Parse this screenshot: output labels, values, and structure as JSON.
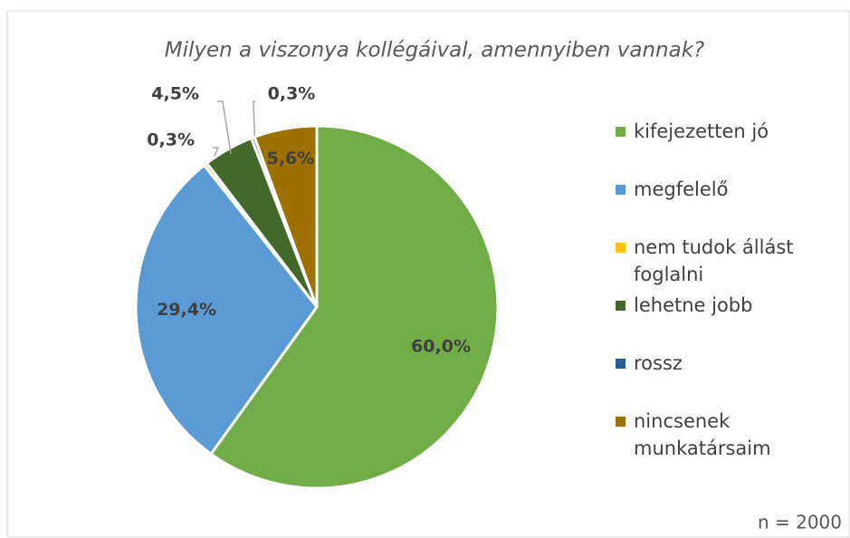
{
  "chart_data": {
    "type": "pie",
    "title": "Milyen a viszonya kollégáival, amennyiben vannak?",
    "categories": [
      "kifejezetten jó",
      "megfelelő",
      "nem tudok állást foglalni",
      "lehetne jobb",
      "rossz",
      "nincsenek munkatársaim"
    ],
    "values": [
      60.0,
      29.4,
      0.3,
      4.5,
      0.3,
      5.6
    ],
    "value_labels": [
      "60,0%",
      "29,4%",
      "0,3%",
      "4,5%",
      "0,3%",
      "5,6%"
    ],
    "colors": [
      "#70ad47",
      "#5b9bd5",
      "#ffc000",
      "#43682b",
      "#255e91",
      "#9e7000"
    ],
    "legend": "right",
    "annotation": "n = 2000"
  }
}
